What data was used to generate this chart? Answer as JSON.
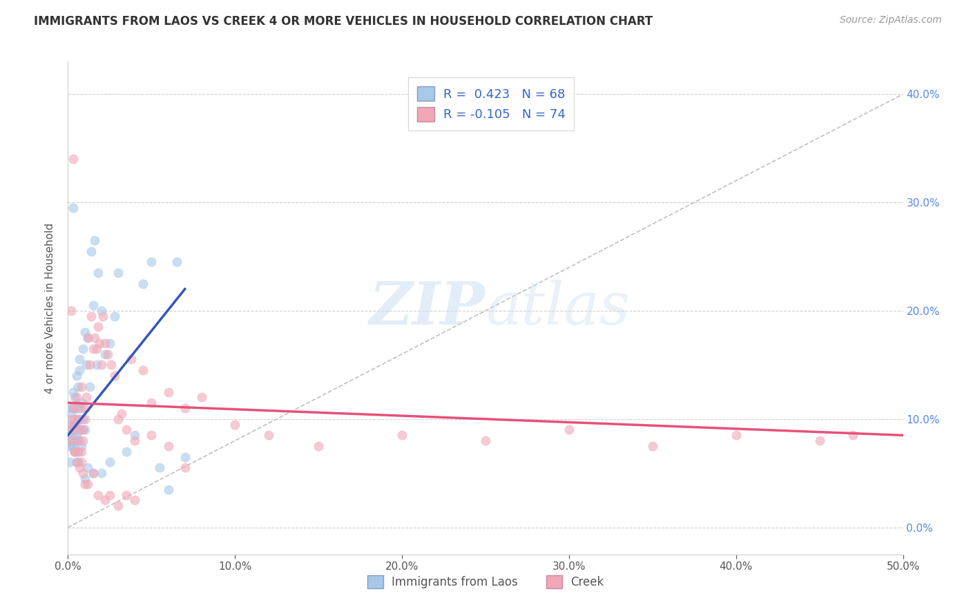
{
  "title": "IMMIGRANTS FROM LAOS VS CREEK 4 OR MORE VEHICLES IN HOUSEHOLD CORRELATION CHART",
  "source": "Source: ZipAtlas.com",
  "ylabel": "4 or more Vehicles in Household",
  "xlim": [
    0.0,
    0.5
  ],
  "ylim": [
    -0.025,
    0.43
  ],
  "xtick_vals": [
    0.0,
    0.1,
    0.2,
    0.3,
    0.4,
    0.5
  ],
  "xtick_labels": [
    "0.0%",
    "10.0%",
    "20.0%",
    "30.0%",
    "40.0%",
    "50.0%"
  ],
  "ytick_vals": [
    0.0,
    0.1,
    0.2,
    0.3,
    0.4
  ],
  "ytick_right_labels": [
    "0.0%",
    "10.0%",
    "20.0%",
    "30.0%",
    "40.0%"
  ],
  "R_laos": 0.423,
  "N_laos": 68,
  "R_creek": -0.105,
  "N_creek": 74,
  "laos_color": "#a8c8e8",
  "creek_color": "#f0a8b8",
  "laos_line_color": "#3355bb",
  "creek_line_color": "#e8507a",
  "ref_line_color": "#c0c0c0",
  "scatter_alpha": 0.6,
  "scatter_size": 90,
  "legend_labels": [
    "Immigrants from Laos",
    "Creek"
  ],
  "laos_trend_x": [
    0.0,
    0.07
  ],
  "laos_trend_y": [
    0.085,
    0.22
  ],
  "creek_trend_x": [
    0.0,
    0.5
  ],
  "creek_trend_y": [
    0.115,
    0.085
  ],
  "laos_x": [
    0.001,
    0.001,
    0.001,
    0.002,
    0.002,
    0.002,
    0.002,
    0.003,
    0.003,
    0.003,
    0.003,
    0.003,
    0.004,
    0.004,
    0.004,
    0.004,
    0.005,
    0.005,
    0.005,
    0.005,
    0.006,
    0.006,
    0.006,
    0.007,
    0.007,
    0.007,
    0.008,
    0.008,
    0.009,
    0.009,
    0.01,
    0.01,
    0.011,
    0.012,
    0.013,
    0.014,
    0.015,
    0.016,
    0.017,
    0.018,
    0.02,
    0.022,
    0.025,
    0.028,
    0.03,
    0.035,
    0.04,
    0.045,
    0.05,
    0.055,
    0.06,
    0.065,
    0.07,
    0.001,
    0.002,
    0.003,
    0.004,
    0.005,
    0.006,
    0.007,
    0.008,
    0.009,
    0.01,
    0.012,
    0.015,
    0.02,
    0.025,
    0.003
  ],
  "laos_y": [
    0.085,
    0.095,
    0.075,
    0.09,
    0.105,
    0.08,
    0.11,
    0.085,
    0.095,
    0.11,
    0.075,
    0.125,
    0.08,
    0.1,
    0.12,
    0.095,
    0.085,
    0.095,
    0.11,
    0.14,
    0.07,
    0.1,
    0.13,
    0.145,
    0.09,
    0.155,
    0.075,
    0.115,
    0.165,
    0.1,
    0.18,
    0.09,
    0.15,
    0.175,
    0.13,
    0.255,
    0.205,
    0.265,
    0.15,
    0.235,
    0.2,
    0.16,
    0.17,
    0.195,
    0.235,
    0.07,
    0.085,
    0.225,
    0.245,
    0.055,
    0.035,
    0.245,
    0.065,
    0.06,
    0.075,
    0.08,
    0.07,
    0.06,
    0.06,
    0.08,
    0.11,
    0.09,
    0.045,
    0.055,
    0.05,
    0.05,
    0.06,
    0.295
  ],
  "creek_x": [
    0.001,
    0.002,
    0.002,
    0.003,
    0.003,
    0.004,
    0.004,
    0.005,
    0.005,
    0.006,
    0.006,
    0.007,
    0.007,
    0.008,
    0.008,
    0.009,
    0.009,
    0.01,
    0.01,
    0.011,
    0.012,
    0.013,
    0.014,
    0.015,
    0.016,
    0.017,
    0.018,
    0.019,
    0.02,
    0.021,
    0.022,
    0.024,
    0.026,
    0.028,
    0.03,
    0.032,
    0.035,
    0.038,
    0.04,
    0.045,
    0.05,
    0.06,
    0.07,
    0.08,
    0.1,
    0.12,
    0.15,
    0.2,
    0.25,
    0.3,
    0.35,
    0.4,
    0.45,
    0.47,
    0.003,
    0.004,
    0.005,
    0.006,
    0.007,
    0.008,
    0.009,
    0.01,
    0.012,
    0.015,
    0.018,
    0.022,
    0.025,
    0.03,
    0.035,
    0.04,
    0.05,
    0.06,
    0.07,
    0.002
  ],
  "creek_y": [
    0.09,
    0.1,
    0.08,
    0.11,
    0.09,
    0.095,
    0.07,
    0.1,
    0.12,
    0.11,
    0.08,
    0.09,
    0.1,
    0.07,
    0.13,
    0.09,
    0.08,
    0.11,
    0.1,
    0.12,
    0.175,
    0.15,
    0.195,
    0.165,
    0.175,
    0.165,
    0.185,
    0.17,
    0.15,
    0.195,
    0.17,
    0.16,
    0.15,
    0.14,
    0.1,
    0.105,
    0.09,
    0.155,
    0.08,
    0.145,
    0.115,
    0.125,
    0.11,
    0.12,
    0.095,
    0.085,
    0.075,
    0.085,
    0.08,
    0.09,
    0.075,
    0.085,
    0.08,
    0.085,
    0.34,
    0.07,
    0.06,
    0.07,
    0.055,
    0.06,
    0.05,
    0.04,
    0.04,
    0.05,
    0.03,
    0.025,
    0.03,
    0.02,
    0.03,
    0.025,
    0.085,
    0.075,
    0.055,
    0.2
  ]
}
